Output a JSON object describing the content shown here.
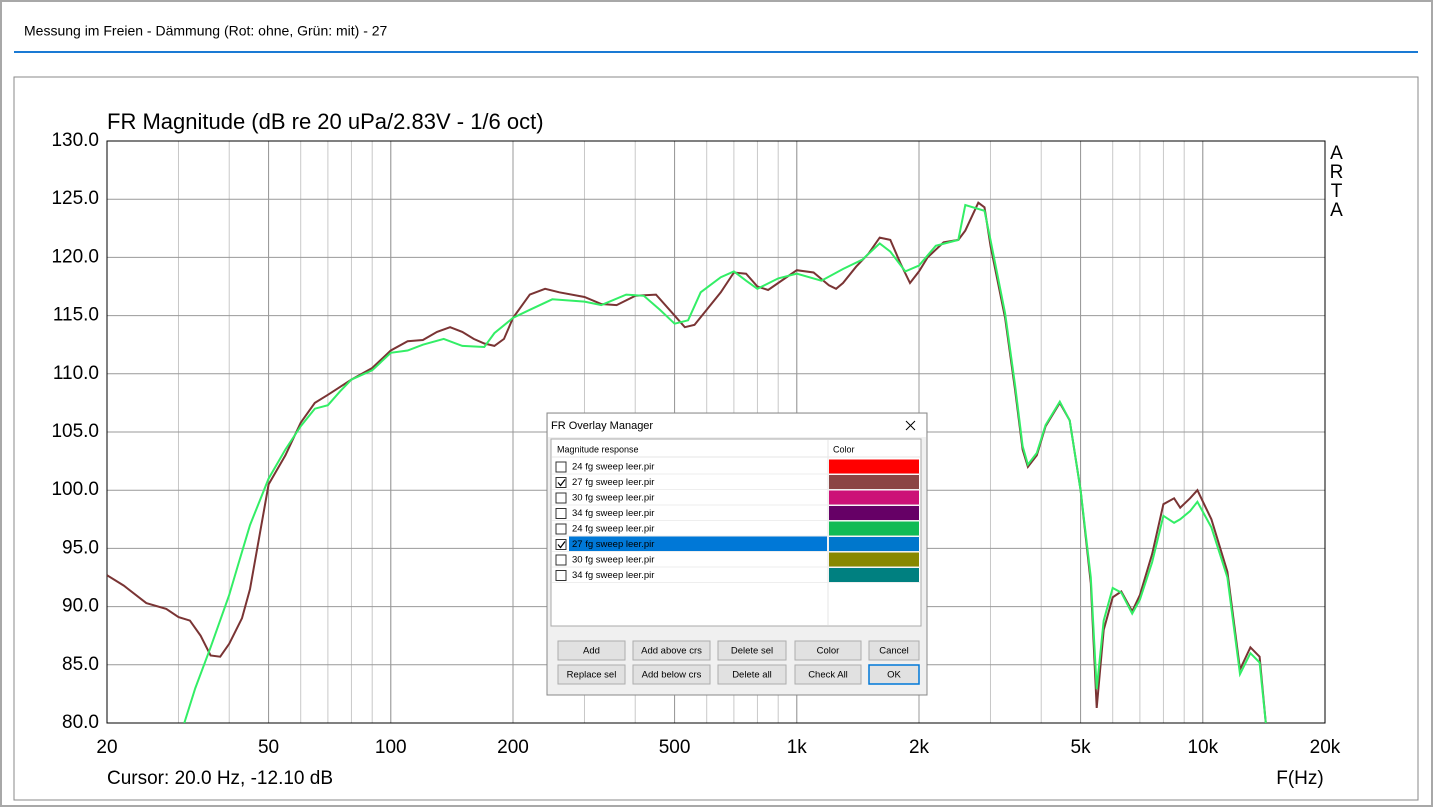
{
  "window": {
    "title": "Messung im Freien - Dämmung (Rot: ohne, Grün: mit) - 27"
  },
  "chart_data": {
    "type": "line",
    "title": "FR Magnitude (dB re 20 uPa/2.83V - 1/6 oct)",
    "side_label": "ARTA",
    "x_label": "F(Hz)",
    "cursor": "Cursor: 20.0 Hz, -12.10 dB",
    "xscale": "log",
    "grid": true,
    "xlim": [
      20,
      20000
    ],
    "ylim": [
      80,
      130
    ],
    "xticks": [
      20,
      50,
      100,
      200,
      500,
      {
        "value": 1000,
        "label": "1k"
      },
      {
        "value": 2000,
        "label": "2k"
      },
      {
        "value": 5000,
        "label": "5k"
      },
      {
        "value": 10000,
        "label": "10k"
      },
      {
        "value": 20000,
        "label": "20k"
      }
    ],
    "yticks": [
      {
        "value": 80,
        "label": "80.0"
      },
      {
        "value": 85,
        "label": "85.0"
      },
      {
        "value": 90,
        "label": "90.0"
      },
      {
        "value": 95,
        "label": "95.0"
      },
      {
        "value": 100,
        "label": "100.0"
      },
      {
        "value": 105,
        "label": "105.0"
      },
      {
        "value": 110,
        "label": "110.0"
      },
      {
        "value": 115,
        "label": "115.0"
      },
      {
        "value": 120,
        "label": "120.0"
      },
      {
        "value": 125,
        "label": "125.0"
      },
      {
        "value": 130,
        "label": "130.0"
      }
    ],
    "series": [
      {
        "color": "#7a3434",
        "x": [
          20,
          22,
          25,
          28,
          30,
          32,
          34,
          36,
          38,
          40,
          43,
          45,
          50,
          55,
          60,
          65,
          70,
          80,
          90,
          100,
          110,
          120,
          130,
          140,
          150,
          160,
          170,
          180,
          190,
          200,
          220,
          240,
          260,
          300,
          330,
          360,
          400,
          450,
          500,
          530,
          560,
          600,
          650,
          700,
          750,
          800,
          850,
          900,
          1000,
          1100,
          1200,
          1250,
          1300,
          1400,
          1500,
          1600,
          1700,
          1800,
          1900,
          2000,
          2100,
          2300,
          2500,
          2600,
          2800,
          2900,
          3000,
          3260,
          3450,
          3600,
          3710,
          3900,
          4100,
          4445,
          4700,
          5000,
          5300,
          5480,
          5700,
          6000,
          6300,
          6700,
          7000,
          7500,
          8000,
          8500,
          8800,
          9300,
          9700,
          10500,
          11500,
          12350,
          13100,
          13800,
          14300
        ],
        "values": [
          92.7,
          91.8,
          90.3,
          89.8,
          89.1,
          88.8,
          87.5,
          85.8,
          85.7,
          86.8,
          89,
          91.5,
          100.5,
          103,
          105.8,
          107.5,
          108.2,
          109.5,
          110.5,
          112,
          112.8,
          112.9,
          113.6,
          114,
          113.6,
          113,
          112.6,
          112.4,
          113,
          114.8,
          116.8,
          117.3,
          117,
          116.6,
          116,
          115.9,
          116.7,
          116.8,
          115,
          114,
          114.2,
          115.5,
          117,
          118.7,
          118.6,
          117.5,
          117.2,
          117.8,
          118.9,
          118.7,
          117.6,
          117.3,
          117.8,
          119.2,
          120.3,
          121.7,
          121.5,
          119.5,
          117.8,
          118.8,
          120,
          121.3,
          121.5,
          122.3,
          124.7,
          124.3,
          121,
          114.8,
          108.6,
          103.5,
          102,
          103,
          105.5,
          107.5,
          106,
          100,
          92,
          81.3,
          88,
          90.8,
          91.3,
          89.6,
          91,
          94.5,
          98.8,
          99.3,
          98.5,
          99.3,
          100,
          97.5,
          93,
          84.6,
          86.5,
          85.7,
          80
        ]
      },
      {
        "color": "#33ee66",
        "x": [
          31,
          33,
          36,
          40,
          42,
          45,
          50,
          55,
          60,
          65,
          70,
          75,
          80,
          90,
          100,
          110,
          120,
          135,
          150,
          170,
          180,
          200,
          220,
          250,
          300,
          330,
          380,
          420,
          460,
          500,
          540,
          580,
          650,
          700,
          750,
          800,
          900,
          1000,
          1150,
          1300,
          1450,
          1600,
          1700,
          1850,
          2000,
          2200,
          2500,
          2600,
          2900,
          3000,
          3260,
          3450,
          3600,
          3710,
          3900,
          4100,
          4445,
          4700,
          5000,
          5300,
          5480,
          5700,
          6000,
          6300,
          6700,
          7000,
          7500,
          8000,
          8500,
          8800,
          9300,
          9700,
          10500,
          11500,
          12350,
          13100,
          13800,
          14300
        ],
        "values": [
          80,
          83,
          86.5,
          91,
          93.5,
          97,
          101,
          103.5,
          105.5,
          107,
          107.3,
          108.5,
          109.5,
          110.3,
          111.8,
          112,
          112.5,
          113,
          112.4,
          112.3,
          113.5,
          114.8,
          115.5,
          116.4,
          116.2,
          115.9,
          116.8,
          116.7,
          115.5,
          114.3,
          114.6,
          117,
          118.3,
          118.8,
          118,
          117.3,
          118.2,
          118.6,
          118,
          119,
          119.8,
          121.2,
          120.5,
          118.8,
          119.3,
          121,
          121.5,
          124.5,
          124,
          121.5,
          115.2,
          109,
          103.8,
          102.2,
          103.2,
          105.6,
          107.6,
          106,
          100,
          92.5,
          82.9,
          88.8,
          91.6,
          91.2,
          89.4,
          90.6,
          93.8,
          97.8,
          97.2,
          97.5,
          98.2,
          99,
          96.8,
          92.5,
          84.2,
          86,
          85.2,
          80
        ]
      }
    ]
  },
  "dialog": {
    "title": "FR Overlay Manager",
    "columns": [
      "Magnitude response",
      "Color"
    ],
    "selected": 5,
    "rows": [
      {
        "name": "24 fg sweep leer.pir",
        "checked": false,
        "color": "#ff0000"
      },
      {
        "name": "27 fg sweep leer.pir",
        "checked": true,
        "color": "#8b4444"
      },
      {
        "name": "30 fg sweep leer.pir",
        "checked": false,
        "color": "#cc1177"
      },
      {
        "name": "34 fg sweep leer.pir",
        "checked": false,
        "color": "#660066"
      },
      {
        "name": "24 fg sweep leer.pir",
        "checked": false,
        "color": "#11bb55"
      },
      {
        "name": "27 fg sweep leer.pir",
        "checked": true,
        "color": "#0077cc"
      },
      {
        "name": "30 fg sweep leer.pir",
        "checked": false,
        "color": "#888800"
      },
      {
        "name": "34 fg sweep leer.pir",
        "checked": false,
        "color": "#008080"
      }
    ],
    "buttons": [
      [
        "Add",
        "Add above crs",
        "Delete sel",
        "Color",
        "Cancel"
      ],
      [
        "Replace sel",
        "Add below crs",
        "Delete all",
        "Check All",
        "OK"
      ]
    ]
  }
}
